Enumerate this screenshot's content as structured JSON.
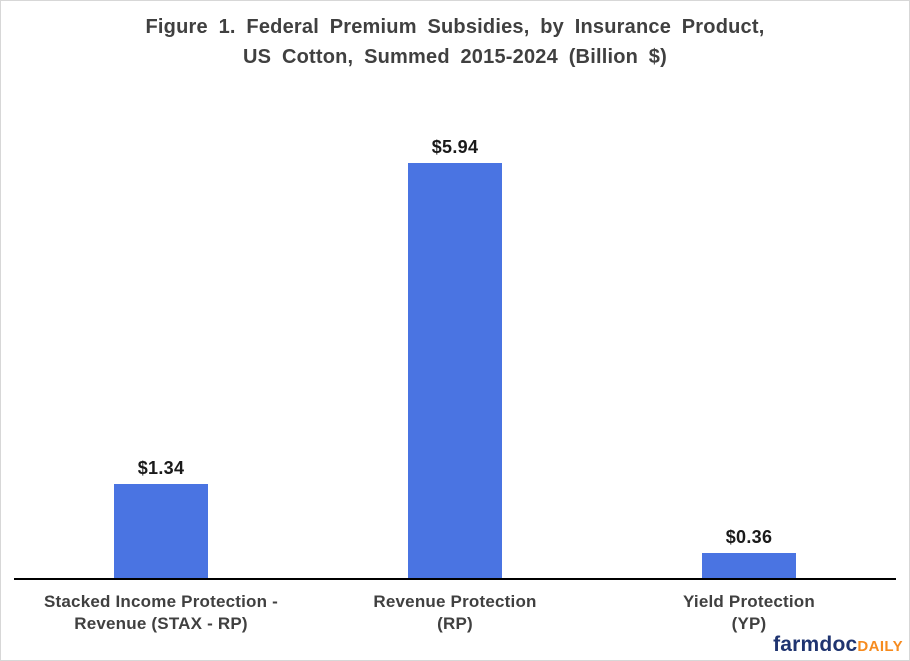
{
  "title": {
    "line1": "Figure 1. Federal Premium Subsidies, by Insurance Product,",
    "line2": "US Cotton, Summed 2015-2024 (Billion $)"
  },
  "chart_data": {
    "type": "bar",
    "title": "Figure 1. Federal Premium Subsidies, by Insurance Product, US Cotton, Summed 2015-2024 (Billion $)",
    "categories": [
      "Stacked Income Protection - Revenue (STAX - RP)",
      "Revenue Protection (RP)",
      "Yield Protection (YP)"
    ],
    "categories_lines": [
      [
        "Stacked Income Protection -",
        "Revenue (STAX - RP)"
      ],
      [
        "Revenue Protection",
        "(RP)"
      ],
      [
        "Yield Protection",
        "(YP)"
      ]
    ],
    "values": [
      1.34,
      5.94,
      0.36
    ],
    "data_labels": [
      "$1.34",
      "$5.94",
      "$0.36"
    ],
    "xlabel": "",
    "ylabel": "",
    "ylim": [
      0,
      6.9
    ],
    "grid": false,
    "legend": false,
    "bar_color": "#4A74E2",
    "axis_color": "#000000"
  },
  "branding": {
    "logo_main": "farmdoc",
    "logo_suffix": "DAILY",
    "logo_main_color": "#1F3470",
    "logo_suffix_color": "#F68B1F"
  }
}
